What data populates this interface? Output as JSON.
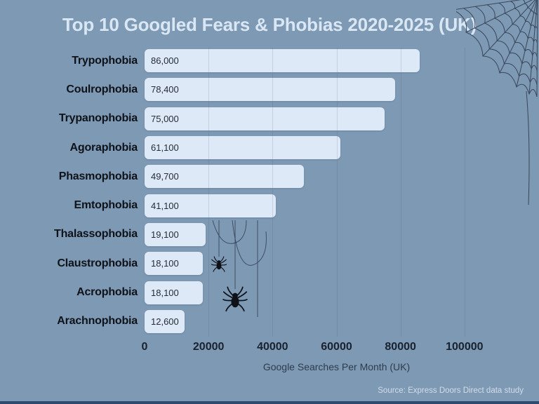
{
  "title": "Top 10 Googled Fears & Phobias 2020-2025 (UK)",
  "source": "Source: Express Doors Direct data study",
  "chart_data": {
    "type": "bar",
    "orientation": "horizontal",
    "title": "Top 10 Googled Fears & Phobias 2020-2025 (UK)",
    "categories": [
      "Trypophobia",
      "Coulrophobia",
      "Trypanophobia",
      "Agoraphobia",
      "Phasmophobia",
      "Emtophobia",
      "Thalassophobia",
      "Claustrophobia",
      "Acrophobia",
      "Arachnophobia"
    ],
    "values": [
      86000,
      78400,
      75000,
      61100,
      49700,
      41100,
      19100,
      18100,
      18100,
      12600
    ],
    "value_labels": [
      "86,000",
      "78,400",
      "75,000",
      "61,100",
      "49,700",
      "41,100",
      "19,100",
      "18,100",
      "18,100",
      "12,600"
    ],
    "xlabel": "Google Searches Per Month (UK)",
    "xticks": [
      0,
      20000,
      40000,
      60000,
      80000,
      100000
    ],
    "xtick_labels": [
      "0",
      "20000",
      "40000",
      "60000",
      "80000",
      "100000"
    ],
    "xlim": [
      0,
      120000
    ],
    "grid": "vertical",
    "legend": "none",
    "bar_color": "#dde9f7",
    "background_color": "#7e99b4",
    "title_color": "#d9e6f4",
    "label_color": "#0e1219"
  },
  "decorations": {
    "spider_web": "top-right corner web",
    "spiders": "two black spiders hanging on silk threads",
    "bottom_strip_color": "#2b4a6e"
  }
}
